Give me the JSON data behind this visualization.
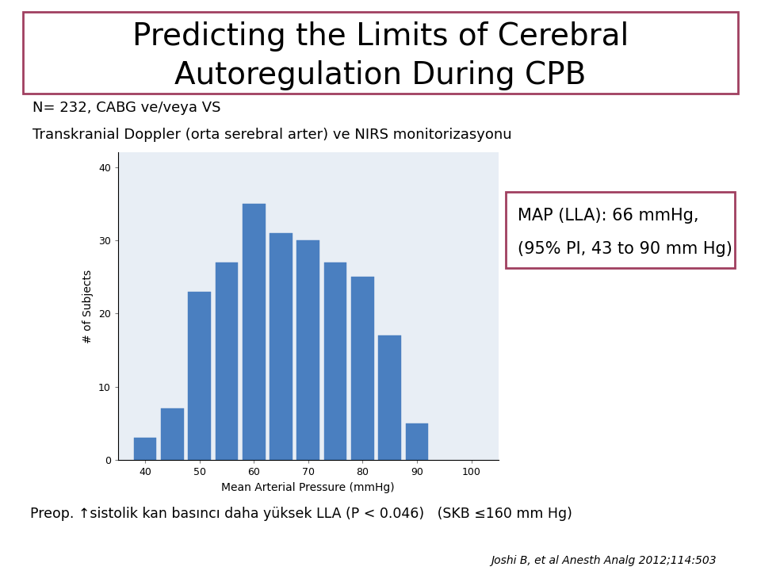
{
  "title_line1": "Predicting the Limits of Cerebral",
  "title_line2": "Autoregulation During CPB",
  "subtitle_line1": "N= 232, CABG ve/veya VS",
  "subtitle_line2": "Transkranial Doppler (orta serebral arter) ve NIRS monitorizasyonu",
  "bar_centers": [
    40,
    45,
    50,
    55,
    60,
    65,
    70,
    75,
    80,
    85,
    90
  ],
  "bar_heights": [
    3,
    7,
    23,
    27,
    35,
    31,
    30,
    27,
    25,
    17,
    5
  ],
  "bar_color": "#4A7FC0",
  "bar_width": 4.2,
  "xlabel": "Mean Arterial Pressure (mmHg)",
  "ylabel": "# of Subjects",
  "ylim": [
    0,
    42
  ],
  "xlim": [
    35,
    105
  ],
  "xticks": [
    40,
    50,
    60,
    70,
    80,
    90,
    100
  ],
  "yticks": [
    0,
    10,
    20,
    30,
    40
  ],
  "plot_bg_color": "#E8EEF5",
  "annotation_text_line1": "MAP (LLA): 66 mmHg,",
  "annotation_text_line2": "(95% PI, 43 to 90 mm Hg)",
  "footer_text": "Preop. ↑sistolik kan basıncı daha yüksek LLA (P < 0.046)   (SKB ≤160 mm Hg)",
  "citation_text": "Joshi B, et al Anesth Analg 2012;114:503",
  "bg_color": "#FFFFFF",
  "title_border_color": "#A04060",
  "ann_border_color": "#A04060"
}
